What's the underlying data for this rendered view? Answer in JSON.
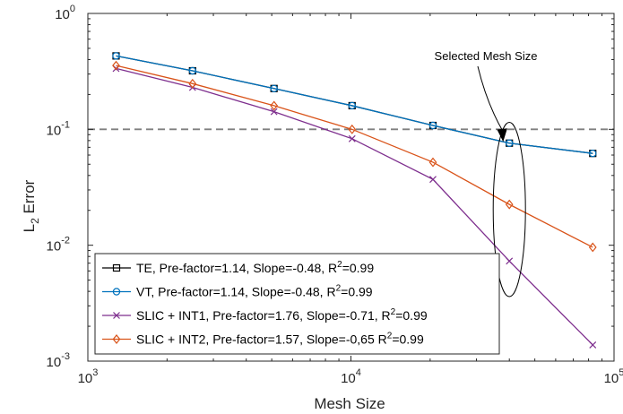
{
  "chart_data": {
    "type": "line",
    "xlabel": "Mesh Size",
    "ylabel": {
      "main": "L",
      "sub": "2",
      "rest": " Error"
    },
    "x_scale": "log",
    "y_scale": "log",
    "xlim": [
      1000,
      100000
    ],
    "ylim": [
      0.001,
      1
    ],
    "x_ticks": [
      {
        "value": 1000,
        "base": "10",
        "exp": "3"
      },
      {
        "value": 10000,
        "base": "10",
        "exp": "4"
      },
      {
        "value": 100000,
        "base": "10",
        "exp": "5"
      }
    ],
    "y_ticks": [
      {
        "value": 1,
        "base": "10",
        "exp": "0"
      },
      {
        "value": 0.1,
        "base": "10",
        "exp": "-1"
      },
      {
        "value": 0.01,
        "base": "10",
        "exp": "-2"
      },
      {
        "value": 0.001,
        "base": "10",
        "exp": "-3"
      }
    ],
    "grid": false,
    "legend_position": "bottom-left",
    "x": [
      1280,
      2500,
      5100,
      10100,
      20500,
      40000,
      83000
    ],
    "series": [
      {
        "name": {
          "pre": "TE, Pre-factor=1.14, Slope=-0.48, R",
          "sup": "2",
          "post": "=0.99"
        },
        "marker": "square",
        "color": "#000000",
        "values": [
          0.43,
          0.32,
          0.225,
          0.16,
          0.108,
          0.076,
          0.062
        ]
      },
      {
        "name": {
          "pre": "VT, Pre-factor=1.14, Slope=-0.48, R",
          "sup": "2",
          "post": "=0.99"
        },
        "marker": "circle",
        "color": "#0072BD",
        "values": [
          0.43,
          0.32,
          0.225,
          0.16,
          0.108,
          0.076,
          0.062
        ]
      },
      {
        "name": {
          "pre": "SLIC + INT1, Pre-factor=1.76, Slope=-0.71, R",
          "sup": "2",
          "post": "=0.99"
        },
        "marker": "x",
        "color": "#7E2F8E",
        "values": [
          0.335,
          0.23,
          0.142,
          0.083,
          0.037,
          0.0073,
          0.00138
        ]
      },
      {
        "name": {
          "pre": "SLIC + INT2, Pre-factor=1.57, Slope=-0,65 R",
          "sup": "2",
          "post": "=0.99"
        },
        "marker": "diamond",
        "color": "#D95319",
        "values": [
          0.355,
          0.248,
          0.16,
          0.1,
          0.052,
          0.0225,
          0.0096
        ]
      }
    ],
    "reference_line": {
      "y": 0.1,
      "style": "dashed",
      "color": "#808080"
    },
    "annotation": {
      "text": "Selected Mesh Size",
      "arrow_to": {
        "x": 40000,
        "y": 0.08
      },
      "ellipse_x": 40000,
      "ellipse_y_range": [
        0.0036,
        0.115
      ]
    },
    "colors": {
      "axes": "#262626",
      "reference": "#808080"
    }
  }
}
